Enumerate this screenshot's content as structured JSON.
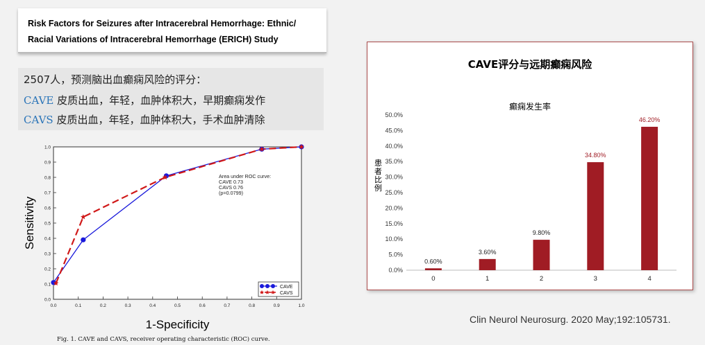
{
  "paper_title": {
    "line1": "Risk Factors for Seizures after Intracerebral Hemorrhage: Ethnic/",
    "line2": "Racial Variations of Intracerebral Hemorrhage (ERICH) Study"
  },
  "description": {
    "intro": "2507人，预测脑出血癫痫风险的评分：",
    "cave_key": "CAVE",
    "cave_text": " 皮质出血，年轻，血肿体积大，早期癫痫发作",
    "cavs_key": "CAVS",
    "cavs_text": " 皮质出血，年轻，血肿体积大，手术血肿清除"
  },
  "roc": {
    "annotation": [
      "Area under ROC curve:",
      "CAVE 0.73",
      "CAVS 0.76",
      "(p=0.0799)"
    ],
    "caption": "Fig. 1. CAVE and CAVS, receiver operating characteristic (ROC) curve.",
    "colors": {
      "cave": "#1a1adb",
      "cavs": "#d01818"
    }
  },
  "citation": "Clin Neurol Neurosurg. 2020 May;192:105731.",
  "chart_data": [
    {
      "type": "line",
      "xlabel": "1-Specificity",
      "ylabel": "Sensitivity",
      "xlim": [
        0,
        1
      ],
      "ylim": [
        0,
        1
      ],
      "xticks": [
        "0.0",
        "0.1",
        "0.2",
        "0.3",
        "0.4",
        "0.5",
        "0.6",
        "0.7",
        "0.8",
        "0.9",
        "1.0"
      ],
      "yticks": [
        "0.0",
        "0.1",
        "0.2",
        "0.3",
        "0.4",
        "0.5",
        "0.6",
        "0.7",
        "0.8",
        "0.9",
        "1.0"
      ],
      "legend_position": "bottom-right",
      "series": [
        {
          "name": "CAVE",
          "x": [
            0.0,
            0.12,
            0.455,
            0.84,
            1.0
          ],
          "y": [
            0.11,
            0.39,
            0.81,
            0.985,
            1.0
          ]
        },
        {
          "name": "CAVS",
          "x": [
            0.01,
            0.12,
            0.45,
            0.84,
            1.0
          ],
          "y": [
            0.105,
            0.54,
            0.8,
            0.985,
            1.0
          ]
        }
      ]
    },
    {
      "type": "bar",
      "title": "CAVE评分与远期癫痫风险",
      "subtitle": "癫痫发生率",
      "ylabel": "患者比例",
      "categories": [
        "0",
        "1",
        "2",
        "3",
        "4"
      ],
      "values": [
        0.6,
        3.6,
        9.8,
        34.8,
        46.2
      ],
      "data_labels": [
        "0.60%",
        "3.60%",
        "9.80%",
        "34.80%",
        "46.20%"
      ],
      "yticks": [
        "0.0%",
        "5.0%",
        "10.0%",
        "15.0%",
        "20.0%",
        "25.0%",
        "30.0%",
        "35.0%",
        "40.0%",
        "45.0%",
        "50.0%"
      ],
      "ylim": [
        0,
        50
      ],
      "bar_color": "#a01c24",
      "label_colors": [
        "#222222",
        "#222222",
        "#222222",
        "#a01c24",
        "#a01c24"
      ]
    }
  ]
}
